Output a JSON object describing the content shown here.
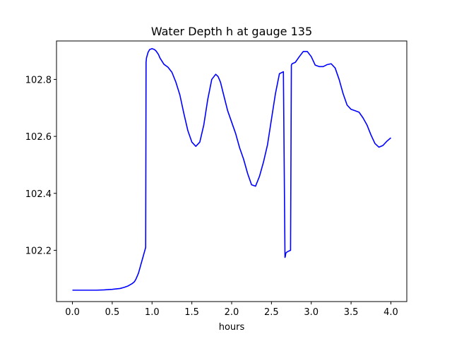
{
  "chart_data": {
    "type": "line",
    "title": "Water Depth h at gauge 135",
    "xlabel": "hours",
    "ylabel": "",
    "xlim": [
      -0.2,
      4.2
    ],
    "ylim": [
      102.02,
      102.935
    ],
    "x_ticks": [
      0.0,
      0.5,
      1.0,
      1.5,
      2.0,
      2.5,
      3.0,
      3.5,
      4.0
    ],
    "x_tick_labels": [
      "0.0",
      "0.5",
      "1.0",
      "1.5",
      "2.0",
      "2.5",
      "3.0",
      "3.5",
      "4.0"
    ],
    "y_ticks": [
      102.2,
      102.4,
      102.6,
      102.8
    ],
    "y_tick_labels": [
      "102.2",
      "102.4",
      "102.6",
      "102.8"
    ],
    "grid": false,
    "series": [
      {
        "color": "#0000ff",
        "x": [
          0.0,
          0.1,
          0.2,
          0.3,
          0.4,
          0.5,
          0.6,
          0.65,
          0.7,
          0.75,
          0.78,
          0.8,
          0.83,
          0.86,
          0.88,
          0.9,
          0.92,
          0.925,
          0.93,
          0.95,
          0.97,
          1.0,
          1.03,
          1.05,
          1.08,
          1.1,
          1.15,
          1.2,
          1.25,
          1.3,
          1.35,
          1.4,
          1.45,
          1.5,
          1.55,
          1.6,
          1.65,
          1.7,
          1.75,
          1.8,
          1.83,
          1.86,
          1.9,
          1.95,
          2.0,
          2.05,
          2.1,
          2.15,
          2.2,
          2.25,
          2.3,
          2.35,
          2.4,
          2.45,
          2.5,
          2.55,
          2.6,
          2.65,
          2.67,
          2.675,
          2.68,
          2.7,
          2.74,
          2.75,
          2.755,
          2.76,
          2.8,
          2.85,
          2.9,
          2.95,
          3.0,
          3.05,
          3.1,
          3.15,
          3.2,
          3.25,
          3.3,
          3.35,
          3.4,
          3.45,
          3.5,
          3.55,
          3.6,
          3.65,
          3.7,
          3.75,
          3.8,
          3.85,
          3.9,
          3.95,
          4.0
        ],
        "y": [
          102.06,
          102.06,
          102.06,
          102.06,
          102.061,
          102.063,
          102.066,
          102.07,
          102.075,
          102.083,
          102.09,
          102.1,
          102.12,
          102.15,
          102.17,
          102.19,
          102.21,
          102.86,
          102.875,
          102.895,
          102.905,
          102.908,
          102.905,
          102.9,
          102.888,
          102.875,
          102.853,
          102.843,
          102.825,
          102.79,
          102.745,
          102.68,
          102.62,
          102.58,
          102.565,
          102.58,
          102.64,
          102.73,
          102.8,
          102.818,
          102.81,
          102.79,
          102.745,
          102.69,
          102.65,
          102.61,
          102.56,
          102.52,
          102.47,
          102.43,
          102.425,
          102.46,
          102.51,
          102.57,
          102.66,
          102.75,
          102.82,
          102.827,
          102.175,
          102.18,
          102.19,
          102.195,
          102.2,
          102.85,
          102.853,
          102.855,
          102.86,
          102.88,
          102.898,
          102.898,
          102.88,
          102.85,
          102.845,
          102.845,
          102.852,
          102.855,
          102.84,
          102.8,
          102.75,
          102.71,
          102.695,
          102.69,
          102.685,
          102.665,
          102.64,
          102.605,
          102.575,
          102.562,
          102.568,
          102.583,
          102.595
        ]
      }
    ]
  }
}
